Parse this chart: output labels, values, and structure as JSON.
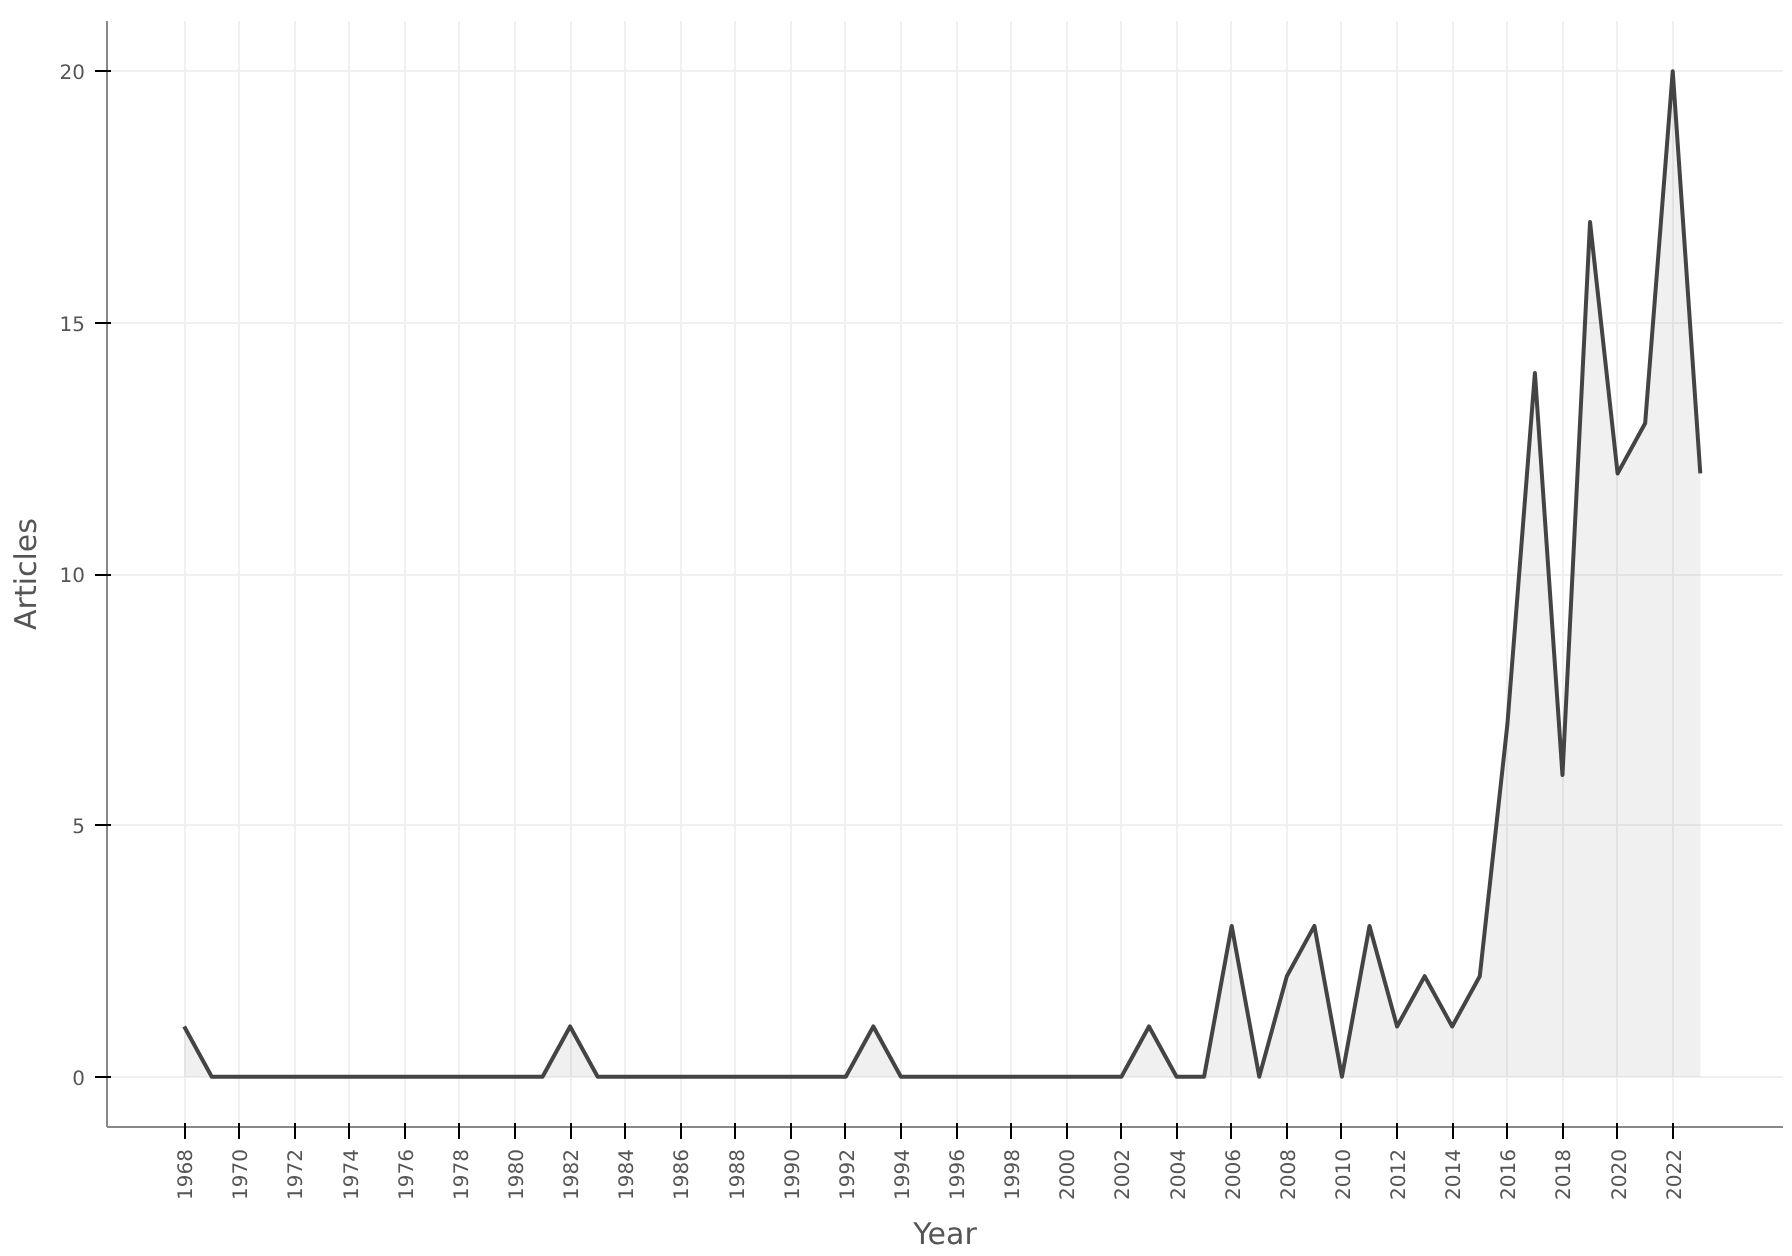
{
  "chart_data": {
    "type": "area",
    "xlabel": "Year",
    "ylabel": "Articles",
    "x": [
      1968,
      1969,
      1970,
      1971,
      1972,
      1973,
      1974,
      1975,
      1976,
      1977,
      1978,
      1979,
      1980,
      1981,
      1982,
      1983,
      1984,
      1985,
      1986,
      1987,
      1988,
      1989,
      1990,
      1991,
      1992,
      1993,
      1994,
      1995,
      1996,
      1997,
      1998,
      1999,
      2000,
      2001,
      2002,
      2003,
      2004,
      2005,
      2006,
      2007,
      2008,
      2009,
      2010,
      2011,
      2012,
      2013,
      2014,
      2015,
      2016,
      2017,
      2018,
      2019,
      2020,
      2021,
      2022,
      2023
    ],
    "series": [
      {
        "color": "#444444",
        "values": [
          1,
          0,
          0,
          0,
          0,
          0,
          0,
          0,
          0,
          0,
          0,
          0,
          0,
          0,
          1,
          0,
          0,
          0,
          0,
          0,
          0,
          0,
          0,
          0,
          0,
          1,
          0,
          0,
          0,
          0,
          0,
          0,
          0,
          0,
          0,
          1,
          0,
          0,
          3,
          0,
          2,
          3,
          0,
          3,
          1,
          2,
          1,
          2,
          7,
          14,
          6,
          17,
          12,
          13,
          20,
          12
        ]
      }
    ],
    "xlim": [
      1965.2,
      2026
    ],
    "ylim": [
      -1,
      21
    ],
    "xticks": [
      1968,
      1970,
      1972,
      1974,
      1976,
      1978,
      1980,
      1982,
      1984,
      1986,
      1988,
      1990,
      1992,
      1994,
      1996,
      1998,
      2000,
      2002,
      2004,
      2006,
      2008,
      2010,
      2012,
      2014,
      2016,
      2018,
      2020,
      2022
    ],
    "yticks": [
      0,
      5,
      10,
      15,
      20
    ],
    "grid": true
  }
}
